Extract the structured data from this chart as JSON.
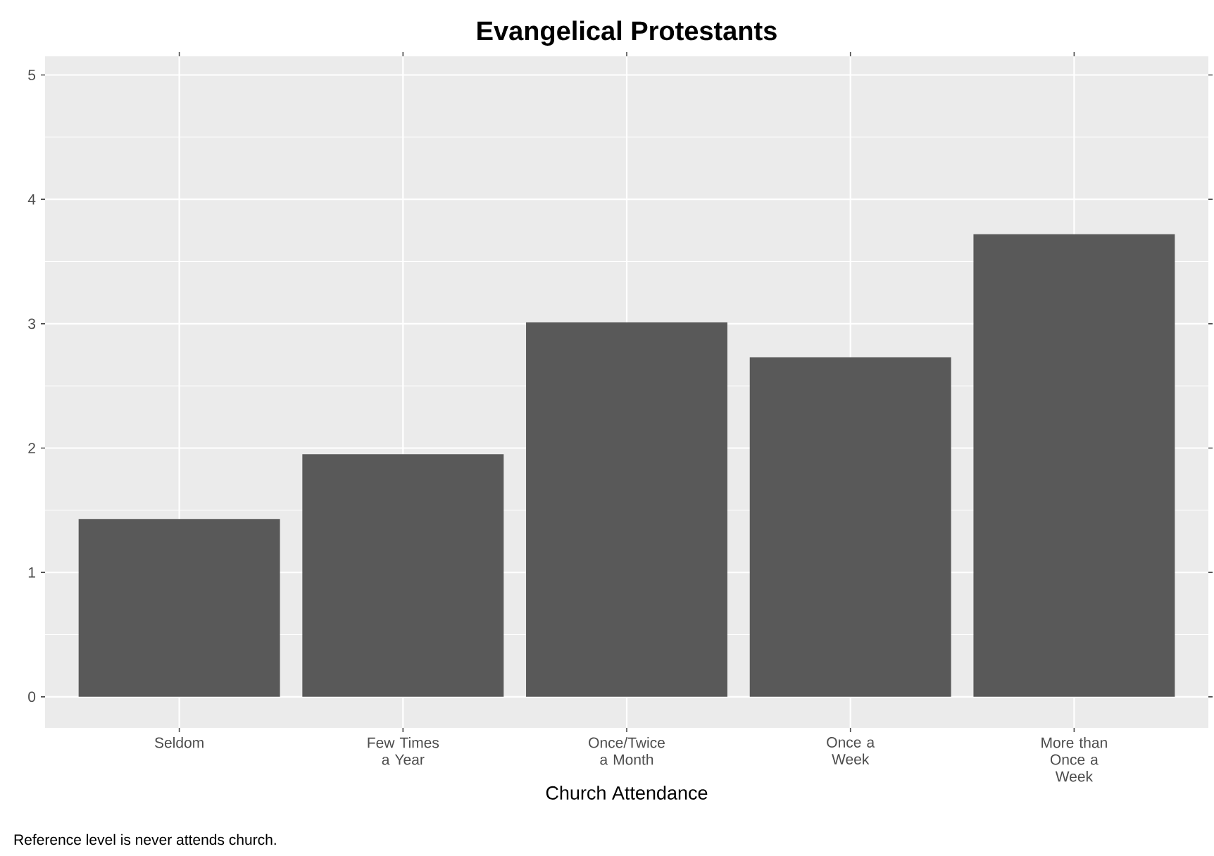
{
  "chart_data": {
    "type": "bar",
    "title": "Evangelical Protestants",
    "categories": [
      "Seldom",
      "Few Times a Year",
      "Once/Twice a Month",
      "Once a Week",
      "More than Once a Week"
    ],
    "values": [
      1.43,
      1.95,
      3.01,
      2.73,
      3.72
    ],
    "color": "#595959",
    "xlabel": "Church Attendance",
    "ylim": [
      -0.25,
      5.15
    ],
    "yticks": [
      0,
      1,
      2,
      3,
      4,
      5
    ],
    "grid": true,
    "annotations": [
      "Reference level is never attends church."
    ]
  }
}
